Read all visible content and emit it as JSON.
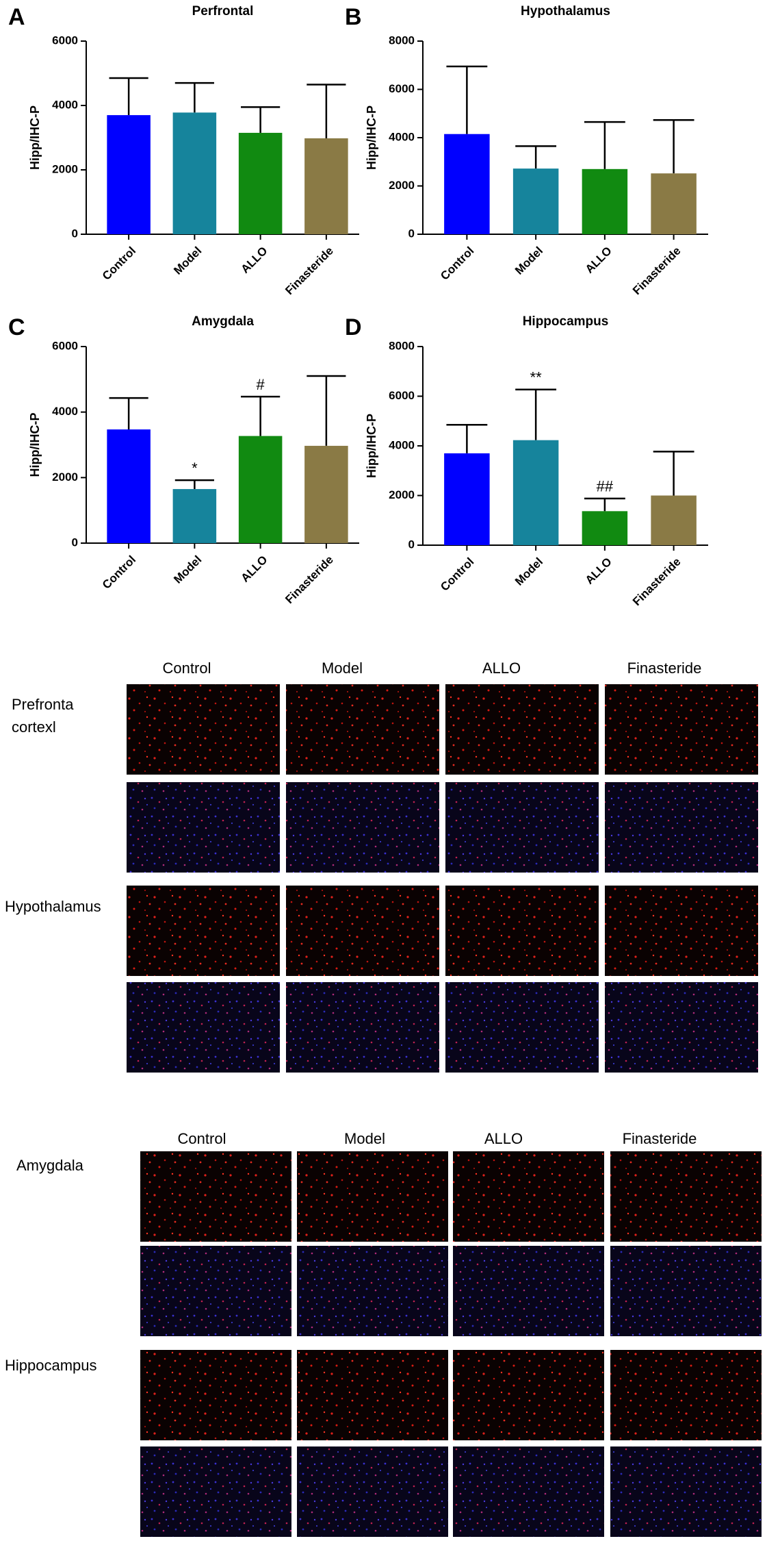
{
  "chart_data": [
    {
      "type": "bar",
      "panel": "A",
      "title": "Perfrontal",
      "ylabel": "Hipp/IHC-P",
      "categories": [
        "Control",
        "Model",
        "ALLO",
        "Finasteride"
      ],
      "values": [
        3700,
        3780,
        3150,
        2980
      ],
      "errors": [
        1150,
        920,
        800,
        1670
      ],
      "markers": [
        null,
        null,
        null,
        null
      ],
      "colors": [
        "#0000ff",
        "#16849c",
        "#118a11",
        "#8a7a45"
      ],
      "ylim": [
        0,
        6000
      ],
      "yticks": [
        0,
        2000,
        4000,
        6000
      ]
    },
    {
      "type": "bar",
      "panel": "B",
      "title": "Hypothalamus",
      "ylabel": "Hipp/IHC-P",
      "categories": [
        "Control",
        "Model",
        "ALLO",
        "Finasteride"
      ],
      "values": [
        4150,
        2720,
        2700,
        2520
      ],
      "errors": [
        2800,
        930,
        1950,
        2210
      ],
      "markers": [
        null,
        null,
        null,
        null
      ],
      "colors": [
        "#0000ff",
        "#16849c",
        "#118a11",
        "#8a7a45"
      ],
      "ylim": [
        0,
        8000
      ],
      "yticks": [
        0,
        2000,
        4000,
        6000,
        8000
      ]
    },
    {
      "type": "bar",
      "panel": "C",
      "title": "Amygdala",
      "ylabel": "Hipp/IHC-P",
      "categories": [
        "Control",
        "Model",
        "ALLO",
        "Finasteride"
      ],
      "values": [
        3470,
        1650,
        3270,
        2970
      ],
      "errors": [
        960,
        270,
        1200,
        2130
      ],
      "markers": [
        null,
        "*",
        "#",
        null
      ],
      "colors": [
        "#0000ff",
        "#16849c",
        "#118a11",
        "#8a7a45"
      ],
      "ylim": [
        0,
        6000
      ],
      "yticks": [
        0,
        2000,
        4000,
        6000
      ]
    },
    {
      "type": "bar",
      "panel": "D",
      "title": "Hippocampus",
      "ylabel": "Hipp/IHC-P",
      "categories": [
        "Control",
        "Model",
        "ALLO",
        "Finasteride"
      ],
      "values": [
        3700,
        4230,
        1370,
        2000
      ],
      "errors": [
        1150,
        2040,
        510,
        1770
      ],
      "markers": [
        null,
        "**",
        "##",
        null
      ],
      "colors": [
        "#0000ff",
        "#16849c",
        "#118a11",
        "#8a7a45"
      ],
      "ylim": [
        0,
        8000
      ],
      "yticks": [
        0,
        2000,
        4000,
        6000,
        8000
      ]
    }
  ],
  "micrographs": [
    {
      "columns": [
        "Control",
        "Model",
        "ALLO",
        "Finasteride"
      ],
      "rows": [
        {
          "label": [
            "Prefronta",
            "cortexl"
          ]
        },
        {
          "label": [
            "Hypothalamus"
          ]
        }
      ]
    },
    {
      "columns": [
        "Control",
        "Model",
        "ALLO",
        "Finasteride"
      ],
      "rows": [
        {
          "label": [
            "Amygdala"
          ]
        },
        {
          "label": [
            "Hippocampus"
          ]
        }
      ]
    }
  ]
}
